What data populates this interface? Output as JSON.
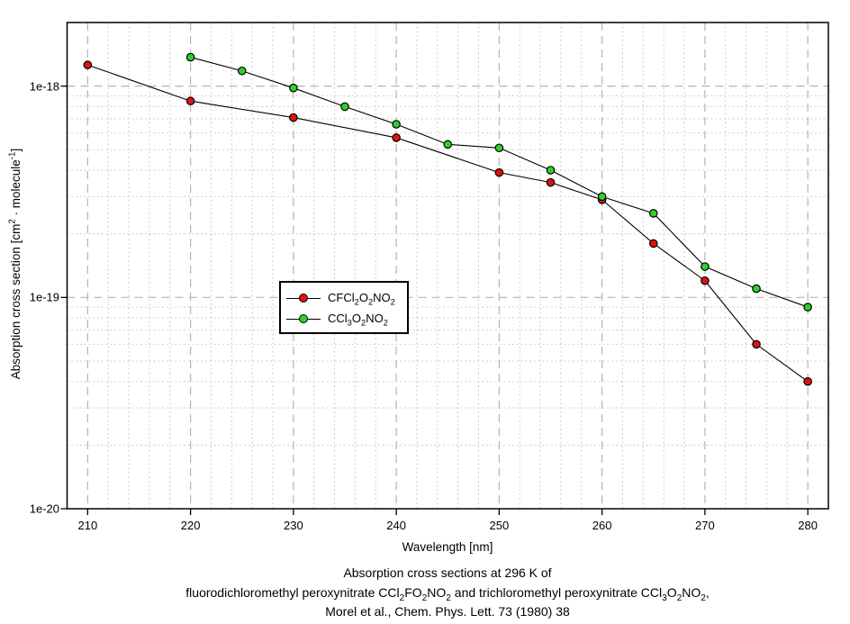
{
  "chart_data": {
    "type": "line",
    "x_scale": "linear",
    "y_scale": "log",
    "xlabel": "Wavelength [nm]",
    "ylabel": "Absorption cross section [cm2 · molecule-1]",
    "xlim": [
      208,
      282
    ],
    "ylim": [
      1e-20,
      2e-18
    ],
    "grid": {
      "major_dashed": true,
      "minor_dotted": true
    },
    "x_major_ticks": [
      210,
      220,
      230,
      240,
      250,
      260,
      270,
      280
    ],
    "x_minor_step": 2,
    "y_major_ticks": [
      {
        "value": 1e-18,
        "label": "1e-18"
      },
      {
        "value": 1e-19,
        "label": "1e-19"
      },
      {
        "value": 1e-20,
        "label": "1e-20"
      }
    ],
    "series": [
      {
        "name": "CFCl2O2NO2",
        "color": "#e01111",
        "marker": "circle",
        "x": [
          210,
          220,
          230,
          240,
          250,
          255,
          260,
          265,
          270,
          275,
          280
        ],
        "y": [
          1.26e-18,
          8.5e-19,
          7.1e-19,
          5.7e-19,
          3.9e-19,
          3.5e-19,
          2.9e-19,
          1.8e-19,
          1.2e-19,
          6e-20,
          4e-20
        ]
      },
      {
        "name": "CCl3O2NO2",
        "color": "#2ed02e",
        "marker": "circle",
        "x": [
          220,
          225,
          230,
          235,
          240,
          245,
          250,
          255,
          260,
          265,
          270,
          275,
          280
        ],
        "y": [
          1.37e-18,
          1.18e-18,
          9.8e-19,
          8e-19,
          6.6e-19,
          5.3e-19,
          5.1e-19,
          4e-19,
          3e-19,
          2.5e-19,
          1.4e-19,
          1.1e-19,
          9e-20
        ]
      }
    ],
    "legend_position": "center",
    "caption_lines": [
      "Absorption cross sections at 296 K of",
      "fluorodichloromethyl peroxynitrate CCl2FO2NO2 and trichloromethyl peroxynitrate CCl3O2NO2,",
      "Morel et al., Chem. Phys. Lett. 73 (1980) 38"
    ]
  },
  "axes": {
    "x_label": "Wavelength [nm]",
    "y_label_rich": [
      {
        "t": "Absorption cross section [cm"
      },
      {
        "t": "2",
        "s": "sup"
      },
      {
        "t": " · molecule"
      },
      {
        "t": "-1",
        "s": "sup"
      },
      {
        "t": "]"
      }
    ]
  },
  "legend": {
    "entries": [
      {
        "color": "#e01111",
        "label_rich": [
          {
            "t": "CFCl"
          },
          {
            "t": "2",
            "s": "sub"
          },
          {
            "t": "O"
          },
          {
            "t": "2",
            "s": "sub"
          },
          {
            "t": "NO"
          },
          {
            "t": "2",
            "s": "sub"
          }
        ]
      },
      {
        "color": "#2ed02e",
        "label_rich": [
          {
            "t": "CCl"
          },
          {
            "t": "3",
            "s": "sub"
          },
          {
            "t": "O"
          },
          {
            "t": "2",
            "s": "sub"
          },
          {
            "t": "NO"
          },
          {
            "t": "2",
            "s": "sub"
          }
        ]
      }
    ]
  },
  "caption": {
    "line1": "Absorption cross sections at 296 K of",
    "line2_rich": [
      {
        "t": "fluorodichloromethyl peroxynitrate CCl"
      },
      {
        "t": "2",
        "s": "sub"
      },
      {
        "t": "FO"
      },
      {
        "t": "2",
        "s": "sub"
      },
      {
        "t": "NO"
      },
      {
        "t": "2",
        "s": "sub"
      },
      {
        "t": " and trichloromethyl peroxynitrate CCl"
      },
      {
        "t": "3",
        "s": "sub"
      },
      {
        "t": "O"
      },
      {
        "t": "2",
        "s": "sub"
      },
      {
        "t": "NO"
      },
      {
        "t": "2",
        "s": "sub"
      },
      {
        "t": ","
      }
    ],
    "line3": "Morel et al., Chem. Phys. Lett. 73 (1980) 38"
  },
  "style": {
    "frame_color": "#000000",
    "major_grid_color": "#b4b4b4",
    "minor_grid_color": "#c9c9c9",
    "line_color": "#000000"
  }
}
